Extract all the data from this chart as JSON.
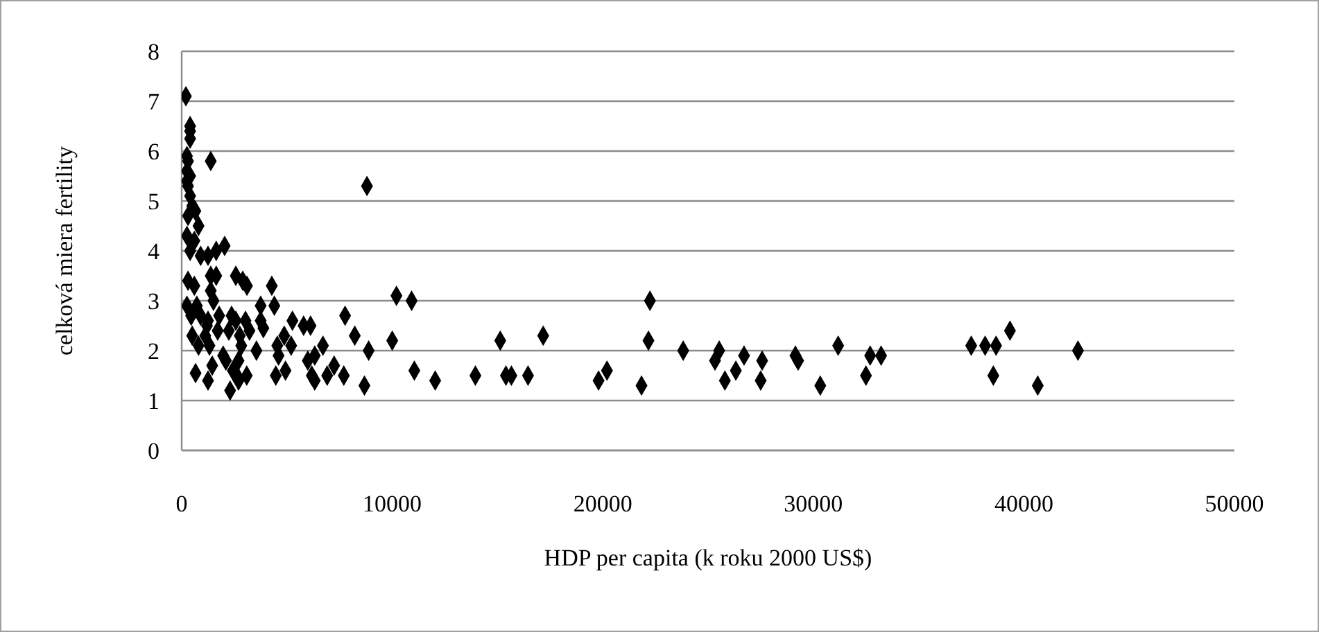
{
  "chart_data": {
    "type": "scatter",
    "xlabel": "HDP per capita (k roku 2000 US$)",
    "ylabel": "celková miera fertility",
    "xlim": [
      0,
      50000
    ],
    "xticks": [
      0,
      10000,
      20000,
      30000,
      40000,
      50000
    ],
    "ylim": [
      0,
      8
    ],
    "yticks": [
      0,
      1,
      2,
      3,
      4,
      5,
      6,
      7,
      8
    ],
    "grid": "y",
    "legend": false,
    "marker": "diamond",
    "series": [
      {
        "color": "#000000",
        "x": [
          200,
          400,
          400,
          400,
          1380,
          250,
          300,
          250,
          400,
          250,
          300,
          400,
          500,
          300,
          650,
          800,
          250,
          600,
          400,
          900,
          1250,
          1640,
          2040,
          8800,
          300,
          600,
          1380,
          1640,
          1380,
          1510,
          2570,
          2900,
          3100,
          4280,
          250,
          720,
          3750,
          4400,
          10200,
          10920,
          450,
          900,
          1250,
          1780,
          1200,
          2370,
          2570,
          3030,
          3750,
          3880,
          5260,
          5790,
          6120,
          7760,
          8220,
          10000,
          500,
          1120,
          1710,
          2240,
          2760,
          3220,
          4870,
          800,
          1320,
          2830,
          3550,
          4540,
          5200,
          6710,
          8880,
          4600,
          5990,
          6320,
          1970,
          2100,
          2700,
          660,
          1450,
          1250,
          2430,
          2630,
          3090,
          2700,
          2300,
          4470,
          4930,
          6180,
          6320,
          6910,
          7240,
          7700,
          8680,
          11050,
          12040,
          13950,
          15130,
          15400,
          15660,
          16450,
          17170,
          19800,
          20200,
          21840,
          22240,
          22170,
          23820,
          25330,
          25530,
          25800,
          26320,
          26710,
          27570,
          27500,
          29150,
          29280,
          30330,
          31180,
          32500,
          32700,
          33220,
          37500,
          38160,
          38680,
          38550,
          39340,
          40660,
          42570
        ],
        "values": [
          7.1,
          6.5,
          6.4,
          6.25,
          5.8,
          5.9,
          5.8,
          5.6,
          5.5,
          5.4,
          5.3,
          5.1,
          4.9,
          4.7,
          4.8,
          4.5,
          4.3,
          4.2,
          4.0,
          3.9,
          3.9,
          4.0,
          4.1,
          5.3,
          3.4,
          3.3,
          3.5,
          3.5,
          3.2,
          3.0,
          3.5,
          3.4,
          3.3,
          3.3,
          2.9,
          2.9,
          2.9,
          2.9,
          3.1,
          3.0,
          2.7,
          2.7,
          2.6,
          2.7,
          2.5,
          2.7,
          2.6,
          2.6,
          2.6,
          2.45,
          2.6,
          2.5,
          2.5,
          2.7,
          2.3,
          2.2,
          2.3,
          2.3,
          2.4,
          2.4,
          2.3,
          2.4,
          2.3,
          2.1,
          2.1,
          2.1,
          2.0,
          2.1,
          2.1,
          2.1,
          2.0,
          1.9,
          1.8,
          1.9,
          1.9,
          1.8,
          1.8,
          1.55,
          1.7,
          1.4,
          1.6,
          1.5,
          1.5,
          1.4,
          1.2,
          1.5,
          1.6,
          1.5,
          1.4,
          1.5,
          1.7,
          1.5,
          1.3,
          1.6,
          1.4,
          1.5,
          2.2,
          1.5,
          1.5,
          1.5,
          2.3,
          1.4,
          1.6,
          1.3,
          3.0,
          2.2,
          2.0,
          1.8,
          2.0,
          1.4,
          1.6,
          1.9,
          1.8,
          1.4,
          1.9,
          1.8,
          1.3,
          2.1,
          1.5,
          1.9,
          1.9,
          2.1,
          2.1,
          2.1,
          1.5,
          2.4,
          1.3,
          2.0
        ]
      }
    ]
  }
}
